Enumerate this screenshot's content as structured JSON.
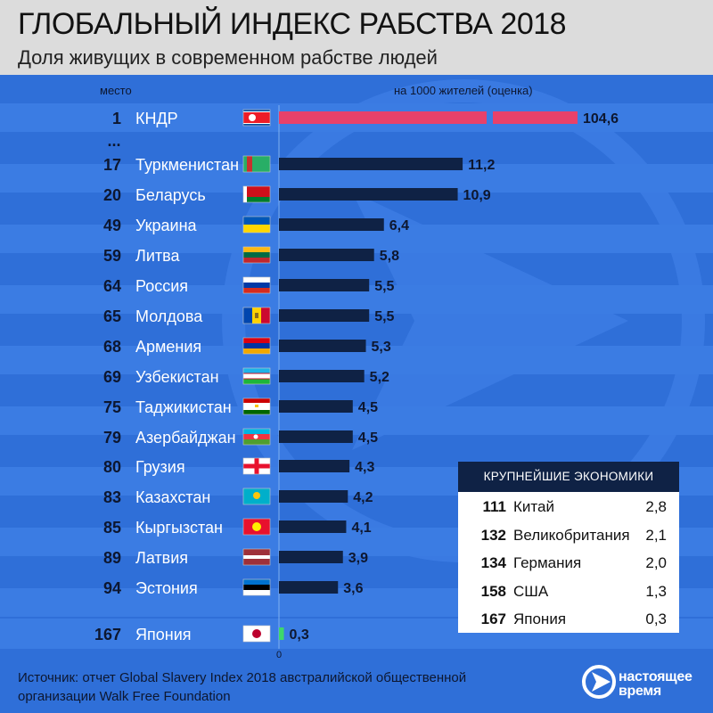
{
  "header": {
    "title": "ГЛОБАЛЬНЫЙ ИНДЕКС РАБСТВА 2018",
    "subtitle": "Доля живущих в современном рабстве людей"
  },
  "labels": {
    "place": "место",
    "unit": "на 1000 жителей (оценка)",
    "ellipsis": "...",
    "zero": "0"
  },
  "chart_data": {
    "type": "bar",
    "orientation": "horizontal",
    "title": "ГЛОБАЛЬНЫЙ ИНДЕКС РАБСТВА 2018",
    "subtitle": "Доля живущих в современном рабстве людей",
    "xlabel": "на 1000 жителей (оценка)",
    "truncated_bar": "КНДР",
    "highlight_color": "#e8416a",
    "bar_color": "#0f2245",
    "japan_bar_color": "#3ed86a",
    "rows": [
      {
        "rank": "1",
        "country": "КНДР",
        "value": "104,6",
        "num": 104.6,
        "flag": "kp"
      },
      {
        "rank": "17",
        "country": "Туркменистан",
        "value": "11,2",
        "num": 11.2,
        "flag": "tm"
      },
      {
        "rank": "20",
        "country": "Беларусь",
        "value": "10,9",
        "num": 10.9,
        "flag": "by"
      },
      {
        "rank": "49",
        "country": "Украина",
        "value": "6,4",
        "num": 6.4,
        "flag": "ua"
      },
      {
        "rank": "59",
        "country": "Литва",
        "value": "5,8",
        "num": 5.8,
        "flag": "lt"
      },
      {
        "rank": "64",
        "country": "Россия",
        "value": "5,5",
        "num": 5.5,
        "flag": "ru"
      },
      {
        "rank": "65",
        "country": "Молдова",
        "value": "5,5",
        "num": 5.5,
        "flag": "md"
      },
      {
        "rank": "68",
        "country": "Армения",
        "value": "5,3",
        "num": 5.3,
        "flag": "am"
      },
      {
        "rank": "69",
        "country": "Узбекистан",
        "value": "5,2",
        "num": 5.2,
        "flag": "uz"
      },
      {
        "rank": "75",
        "country": "Таджикистан",
        "value": "4,5",
        "num": 4.5,
        "flag": "tj"
      },
      {
        "rank": "79",
        "country": "Азербайджан",
        "value": "4,5",
        "num": 4.5,
        "flag": "az"
      },
      {
        "rank": "80",
        "country": "Грузия",
        "value": "4,3",
        "num": 4.3,
        "flag": "ge"
      },
      {
        "rank": "83",
        "country": "Казахстан",
        "value": "4,2",
        "num": 4.2,
        "flag": "kz"
      },
      {
        "rank": "85",
        "country": "Кыргызстан",
        "value": "4,1",
        "num": 4.1,
        "flag": "kg"
      },
      {
        "rank": "89",
        "country": "Латвия",
        "value": "3,9",
        "num": 3.9,
        "flag": "lv"
      },
      {
        "rank": "94",
        "country": "Эстония",
        "value": "3,6",
        "num": 3.6,
        "flag": "ee"
      },
      {
        "rank": "167",
        "country": "Япония",
        "value": "0,3",
        "num": 0.3,
        "flag": "jp"
      }
    ]
  },
  "economies": {
    "title": "КРУПНЕЙШИЕ ЭКОНОМИКИ",
    "rows": [
      {
        "rank": "111",
        "country": "Китай",
        "value": "2,8"
      },
      {
        "rank": "132",
        "country": "Великобритания",
        "value": "2,1"
      },
      {
        "rank": "134",
        "country": "Германия",
        "value": "2,0"
      },
      {
        "rank": "158",
        "country": "США",
        "value": "1,3"
      },
      {
        "rank": "167",
        "country": "Япония",
        "value": "0,3"
      }
    ]
  },
  "footer": {
    "source_line1": "Источник: отчет Global Slavery Index 2018 австралийской общественной",
    "source_line2": "организации Walk Free Foundation",
    "logo_line1": "настоящее",
    "logo_line2": "время",
    "logo_icon": "play-logo-icon"
  }
}
